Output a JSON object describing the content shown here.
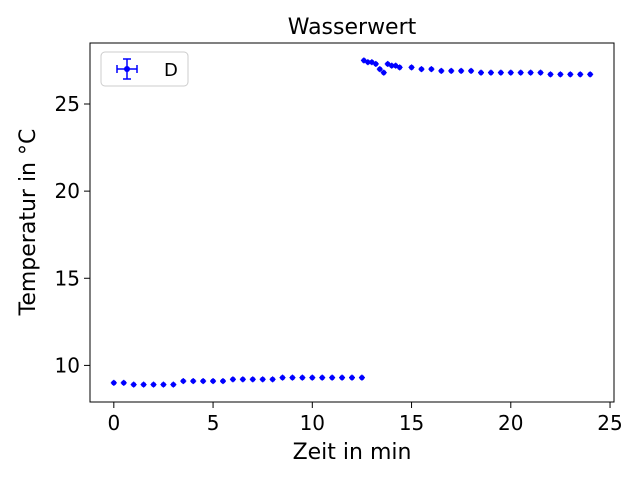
{
  "chart_data": {
    "type": "scatter",
    "title": "Wasserwert",
    "xlabel": "Zeit in min",
    "ylabel": "Temperatur in $^\\circ C$",
    "ylabel_display": "Temperatur in °C",
    "xlim": [
      -1.2,
      25.2
    ],
    "ylim": [
      7.9,
      28.5
    ],
    "xticks": [
      0,
      5,
      10,
      15,
      20,
      25
    ],
    "yticks": [
      10,
      15,
      20,
      25
    ],
    "grid": false,
    "legend": {
      "position": "upper left",
      "entries": [
        "D"
      ]
    },
    "series": [
      {
        "name": "D",
        "color": "#0000ff",
        "marker": "error-bar point",
        "x": [
          0,
          0.5,
          1,
          1.5,
          2,
          2.5,
          3,
          3.5,
          4,
          4.5,
          5,
          5.5,
          6,
          6.5,
          7,
          7.5,
          8,
          8.5,
          9,
          9.5,
          10,
          10.5,
          11,
          11.5,
          12,
          12.5,
          12.6,
          12.8,
          13.0,
          13.2,
          13.4,
          13.6,
          13.8,
          14.0,
          14.2,
          14.4,
          15.0,
          15.5,
          16.0,
          16.5,
          17.0,
          17.5,
          18.0,
          18.5,
          19.0,
          19.5,
          20.0,
          20.5,
          21.0,
          21.5,
          22.0,
          22.5,
          23.0,
          23.5,
          24.0
        ],
        "y": [
          9.0,
          9.0,
          8.9,
          8.9,
          8.9,
          8.9,
          8.9,
          9.1,
          9.1,
          9.1,
          9.1,
          9.1,
          9.2,
          9.2,
          9.2,
          9.2,
          9.2,
          9.3,
          9.3,
          9.3,
          9.3,
          9.3,
          9.3,
          9.3,
          9.3,
          9.3,
          27.5,
          27.4,
          27.4,
          27.3,
          27.0,
          26.8,
          27.3,
          27.2,
          27.2,
          27.1,
          27.1,
          27.0,
          27.0,
          26.9,
          26.9,
          26.9,
          26.9,
          26.8,
          26.8,
          26.8,
          26.8,
          26.8,
          26.8,
          26.8,
          26.7,
          26.7,
          26.7,
          26.7,
          26.7
        ]
      }
    ]
  }
}
